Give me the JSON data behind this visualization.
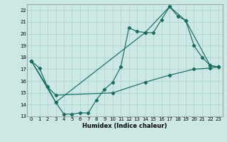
{
  "xlabel": "Humidex (Indice chaleur)",
  "xlim": [
    -0.5,
    23.5
  ],
  "ylim": [
    13,
    22.5
  ],
  "yticks": [
    13,
    14,
    15,
    16,
    17,
    18,
    19,
    20,
    21,
    22
  ],
  "xticks": [
    0,
    1,
    2,
    3,
    4,
    5,
    6,
    7,
    8,
    9,
    10,
    11,
    12,
    13,
    14,
    15,
    16,
    17,
    18,
    19,
    20,
    21,
    22,
    23
  ],
  "bg_color": "#cce8e4",
  "line_color": "#1a6b60",
  "grid_color": "#aad0cc",
  "line1_x": [
    0,
    1,
    2,
    3,
    4,
    5,
    6,
    7,
    8,
    9,
    10,
    11,
    12,
    13,
    14,
    15,
    16,
    17,
    18,
    19,
    20,
    21,
    22,
    23
  ],
  "line1_y": [
    17.7,
    17.1,
    15.5,
    14.2,
    13.2,
    13.2,
    13.3,
    13.3,
    14.4,
    15.3,
    15.9,
    17.2,
    20.5,
    20.2,
    20.1,
    20.1,
    21.2,
    22.3,
    21.5,
    21.1,
    19.0,
    18.0,
    17.3,
    17.2
  ],
  "line2_x": [
    0,
    3,
    14,
    17,
    19,
    22,
    23
  ],
  "line2_y": [
    17.7,
    14.2,
    20.1,
    22.3,
    21.1,
    17.3,
    17.2
  ],
  "line3_x": [
    0,
    2,
    3,
    10,
    14,
    17,
    20,
    22,
    23
  ],
  "line3_y": [
    17.7,
    15.5,
    14.8,
    15.0,
    15.9,
    16.5,
    17.0,
    17.1,
    17.2
  ]
}
